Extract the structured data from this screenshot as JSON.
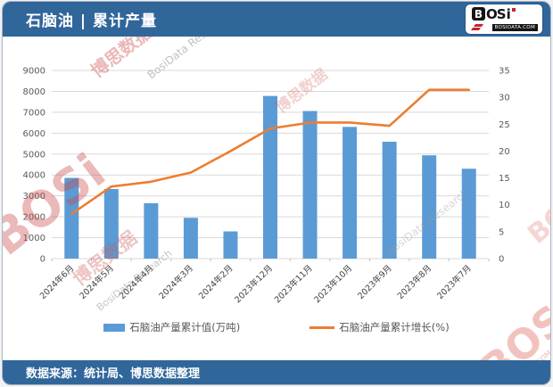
{
  "header": {
    "title": "石脑油 | 累计产量",
    "bg_color": "#31669b"
  },
  "logo": {
    "b": "B",
    "os": "OS",
    "i": "i",
    "domain": "BOSIDATA.COM"
  },
  "footer": {
    "text": "数据来源：统计局、博思数据整理"
  },
  "watermarks": {
    "brand": "BOSi",
    "cn": "博思数据",
    "research": "BosiData Research",
    "domain": "BOSIDATA.COM"
  },
  "chart_data": {
    "type": "bar",
    "subtype": "bar+line combo",
    "categories": [
      "2024年6月",
      "2024年5月",
      "2024年4月",
      "2024年3月",
      "2024年2月",
      "2023年12月",
      "2023年11月",
      "2023年10月",
      "2023年9月",
      "2023年8月",
      "2023年7月"
    ],
    "series": [
      {
        "name": "石脑油产量累计值(万吨)",
        "type": "bar",
        "axis": "left",
        "color": "#5B9BD5",
        "values": [
          3860,
          3330,
          2650,
          1950,
          1300,
          7780,
          7060,
          6300,
          5590,
          4940,
          4300
        ]
      },
      {
        "name": "石脑油产量累计增长(%)",
        "type": "line",
        "axis": "right",
        "color": "#ED7D31",
        "values": [
          8.3,
          13.4,
          14.3,
          16.0,
          20.0,
          24.2,
          25.3,
          25.3,
          24.7,
          31.4,
          31.4
        ]
      }
    ],
    "left_axis": {
      "min": 0,
      "max": 9000,
      "step": 1000
    },
    "right_axis": {
      "min": 0,
      "max": 35,
      "step": 5
    },
    "grid": true,
    "legend_position": "bottom",
    "title": "石脑油 | 累计产量",
    "xlabel": "",
    "ylabel_left": "万吨",
    "ylabel_right": "%"
  }
}
